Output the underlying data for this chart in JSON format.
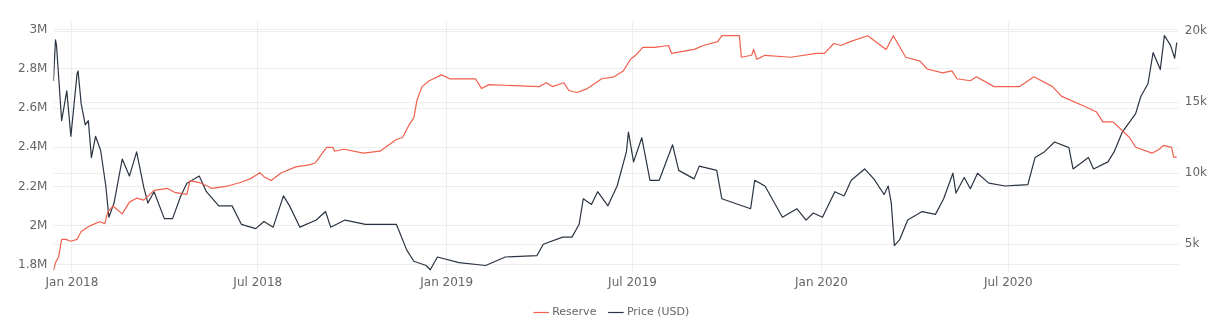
{
  "chart_data": {
    "type": "line",
    "xlim": [
      "2017-12-14",
      "2020-12-14"
    ],
    "xticks": [
      {
        "value": "2018-01-01",
        "label": "Jan 2018"
      },
      {
        "value": "2018-07-01",
        "label": "Jul 2018"
      },
      {
        "value": "2019-01-01",
        "label": "Jan 2019"
      },
      {
        "value": "2019-07-01",
        "label": "Jul 2019"
      },
      {
        "value": "2020-01-01",
        "label": "Jan 2020"
      },
      {
        "value": "2020-07-01",
        "label": "Jul 2020"
      }
    ],
    "ylim": [
      1760000,
      3040000
    ],
    "yticks": [
      {
        "value": 1800000,
        "label": "1.8M"
      },
      {
        "value": 2000000,
        "label": "2M"
      },
      {
        "value": 2200000,
        "label": "2.2M"
      },
      {
        "value": 2400000,
        "label": "2.4M"
      },
      {
        "value": 2600000,
        "label": "2.6M"
      },
      {
        "value": 2800000,
        "label": "2.8M"
      },
      {
        "value": 3000000,
        "label": "3M"
      }
    ],
    "y2lim": [
      3000,
      20650
    ],
    "y2ticks": [
      {
        "value": 5000,
        "label": "5k"
      },
      {
        "value": 10000,
        "label": "10k"
      },
      {
        "value": 15000,
        "label": "15k"
      },
      {
        "value": 20000,
        "label": "20k"
      }
    ],
    "grid": true,
    "legend": "bottom",
    "marker": "none",
    "line_style": "solid",
    "series": [
      {
        "name": "Reserve",
        "color": "#f0604d",
        "x": [
          "2017-12-14",
          "2017-12-16",
          "2017-12-19",
          "2017-12-22",
          "2017-12-26",
          "2017-12-31",
          "2018-01-06",
          "2018-01-10",
          "2018-01-19",
          "2018-01-28",
          "2018-02-02",
          "2018-02-05",
          "2018-02-10",
          "2018-02-19",
          "2018-02-26",
          "2018-03-05",
          "2018-03-12",
          "2018-03-22",
          "2018-04-04",
          "2018-04-11",
          "2018-04-23",
          "2018-04-26",
          "2018-05-05",
          "2018-05-14",
          "2018-05-17",
          "2018-05-31",
          "2018-06-14",
          "2018-06-24",
          "2018-07-03",
          "2018-07-07",
          "2018-07-14",
          "2018-07-24",
          "2018-08-07",
          "2018-08-20",
          "2018-08-26",
          "2018-09-06",
          "2018-09-12",
          "2018-09-14",
          "2018-09-23",
          "2018-10-12",
          "2018-10-28",
          "2018-11-13",
          "2018-11-19",
          "2018-11-26",
          "2018-11-30",
          "2018-12-03",
          "2018-12-08",
          "2018-12-15",
          "2018-12-27",
          "2019-01-04",
          "2019-01-29",
          "2019-02-04",
          "2019-02-11",
          "2019-04-01",
          "2019-04-08",
          "2019-04-14",
          "2019-04-25",
          "2019-04-30",
          "2019-05-08",
          "2019-05-18",
          "2019-06-01",
          "2019-06-13",
          "2019-06-22",
          "2019-06-29",
          "2019-07-04",
          "2019-07-11",
          "2019-07-23",
          "2019-08-05",
          "2019-08-08",
          "2019-08-30",
          "2019-09-08",
          "2019-09-22",
          "2019-09-26",
          "2019-10-13",
          "2019-10-15",
          "2019-10-25",
          "2019-10-27",
          "2019-10-30",
          "2019-11-07",
          "2019-12-02",
          "2019-12-27",
          "2020-01-04",
          "2020-01-13",
          "2020-01-20",
          "2020-01-29",
          "2020-02-15",
          "2020-03-04",
          "2020-03-11",
          "2020-03-23",
          "2020-04-06",
          "2020-04-13",
          "2020-04-28",
          "2020-05-07",
          "2020-05-12",
          "2020-05-25",
          "2020-05-31",
          "2020-06-17",
          "2020-07-12",
          "2020-07-26",
          "2020-08-13",
          "2020-08-22",
          "2020-09-13",
          "2020-09-25",
          "2020-10-01",
          "2020-10-11",
          "2020-10-27",
          "2020-11-02",
          "2020-11-18",
          "2020-11-25",
          "2020-11-29",
          "2020-12-07",
          "2020-12-09",
          "2020-12-12"
        ],
        "values": [
          1770000,
          1810000,
          1840000,
          1930000,
          1930000,
          1920000,
          1930000,
          1970000,
          2000000,
          2020000,
          2010000,
          2070000,
          2100000,
          2060000,
          2120000,
          2140000,
          2130000,
          2180000,
          2190000,
          2170000,
          2160000,
          2230000,
          2220000,
          2200000,
          2190000,
          2200000,
          2220000,
          2240000,
          2270000,
          2250000,
          2230000,
          2270000,
          2300000,
          2310000,
          2320000,
          2400000,
          2400000,
          2380000,
          2390000,
          2370000,
          2380000,
          2440000,
          2450000,
          2520000,
          2550000,
          2640000,
          2710000,
          2740000,
          2770000,
          2750000,
          2750000,
          2700000,
          2720000,
          2710000,
          2730000,
          2710000,
          2730000,
          2690000,
          2680000,
          2700000,
          2750000,
          2760000,
          2790000,
          2850000,
          2870000,
          2910000,
          2910000,
          2920000,
          2880000,
          2900000,
          2920000,
          2940000,
          2970000,
          2970000,
          2860000,
          2870000,
          2900000,
          2850000,
          2870000,
          2860000,
          2880000,
          2880000,
          2930000,
          2920000,
          2940000,
          2970000,
          2900000,
          2970000,
          2860000,
          2840000,
          2800000,
          2780000,
          2790000,
          2750000,
          2740000,
          2760000,
          2710000,
          2710000,
          2760000,
          2710000,
          2660000,
          2610000,
          2580000,
          2530000,
          2530000,
          2450000,
          2400000,
          2370000,
          2390000,
          2410000,
          2400000,
          2350000,
          2350000
        ]
      },
      {
        "name": "Price (USD)",
        "color": "#2a3442",
        "axis": "y2",
        "x": [
          "2017-12-14",
          "2017-12-16",
          "2017-12-17",
          "2017-12-22",
          "2017-12-27",
          "2017-12-31",
          "2018-01-06",
          "2018-01-07",
          "2018-01-10",
          "2018-01-14",
          "2018-01-17",
          "2018-01-20",
          "2018-01-24",
          "2018-01-29",
          "2018-02-03",
          "2018-02-06",
          "2018-02-11",
          "2018-02-19",
          "2018-02-26",
          "2018-03-05",
          "2018-03-12",
          "2018-03-16",
          "2018-03-22",
          "2018-04-01",
          "2018-04-09",
          "2018-04-17",
          "2018-04-23",
          "2018-05-05",
          "2018-05-12",
          "2018-05-24",
          "2018-06-06",
          "2018-06-15",
          "2018-06-29",
          "2018-07-07",
          "2018-07-16",
          "2018-07-26",
          "2018-08-01",
          "2018-08-11",
          "2018-08-27",
          "2018-09-05",
          "2018-09-10",
          "2018-09-24",
          "2018-10-14",
          "2018-11-13",
          "2018-11-23",
          "2018-11-30",
          "2018-12-12",
          "2018-12-16",
          "2018-12-23",
          "2019-01-13",
          "2019-02-08",
          "2019-02-27",
          "2019-03-30",
          "2019-04-05",
          "2019-04-24",
          "2019-05-03",
          "2019-05-10",
          "2019-05-14",
          "2019-05-22",
          "2019-05-28",
          "2019-06-07",
          "2019-06-16",
          "2019-06-25",
          "2019-06-27",
          "2019-07-02",
          "2019-07-10",
          "2019-07-18",
          "2019-07-27",
          "2019-08-09",
          "2019-08-15",
          "2019-08-30",
          "2019-09-04",
          "2019-09-21",
          "2019-09-26",
          "2019-10-24",
          "2019-10-28",
          "2019-11-07",
          "2019-11-24",
          "2019-12-08",
          "2019-12-17",
          "2019-12-24",
          "2020-01-02",
          "2020-01-14",
          "2020-01-23",
          "2020-01-30",
          "2020-02-12",
          "2020-02-21",
          "2020-03-02",
          "2020-03-06",
          "2020-03-09",
          "2020-03-12",
          "2020-03-17",
          "2020-03-25",
          "2020-04-08",
          "2020-04-21",
          "2020-04-29",
          "2020-05-08",
          "2020-05-11",
          "2020-05-19",
          "2020-05-25",
          "2020-06-01",
          "2020-06-12",
          "2020-06-28",
          "2020-07-20",
          "2020-07-27",
          "2020-08-05",
          "2020-08-15",
          "2020-08-29",
          "2020-09-02",
          "2020-09-17",
          "2020-09-22",
          "2020-10-06",
          "2020-10-12",
          "2020-10-20",
          "2020-11-02",
          "2020-11-07",
          "2020-11-14",
          "2020-11-19",
          "2020-11-26",
          "2020-11-30",
          "2020-12-06",
          "2020-12-10",
          "2020-12-12"
        ],
        "values": [
          16500,
          19400,
          19000,
          13700,
          15800,
          12600,
          17000,
          17200,
          14900,
          13400,
          13700,
          11100,
          12600,
          11600,
          9100,
          6900,
          7900,
          11000,
          9800,
          11500,
          9000,
          7900,
          8700,
          6800,
          6800,
          8400,
          9300,
          9800,
          8700,
          7700,
          7700,
          6400,
          6100,
          6600,
          6200,
          8400,
          7700,
          6200,
          6700,
          7300,
          6200,
          6700,
          6400,
          6400,
          4600,
          3800,
          3500,
          3200,
          4100,
          3700,
          3500,
          4100,
          4200,
          5000,
          5500,
          5500,
          6400,
          8200,
          7800,
          8700,
          7700,
          9100,
          11500,
          12900,
          10800,
          12500,
          9500,
          9500,
          12000,
          10200,
          9600,
          10500,
          10200,
          8200,
          7500,
          9500,
          9100,
          6900,
          7500,
          6700,
          7200,
          6900,
          8700,
          8400,
          9500,
          10300,
          9600,
          8500,
          9100,
          7900,
          4900,
          5300,
          6700,
          7300,
          7100,
          8200,
          10000,
          8600,
          9700,
          8900,
          10000,
          9300,
          9100,
          9200,
          11100,
          11500,
          12200,
          11800,
          10300,
          11100,
          10300,
          10800,
          11500,
          12900,
          14200,
          15400,
          16300,
          18500,
          17300,
          19700,
          19000,
          18100,
          19200
        ]
      }
    ]
  }
}
